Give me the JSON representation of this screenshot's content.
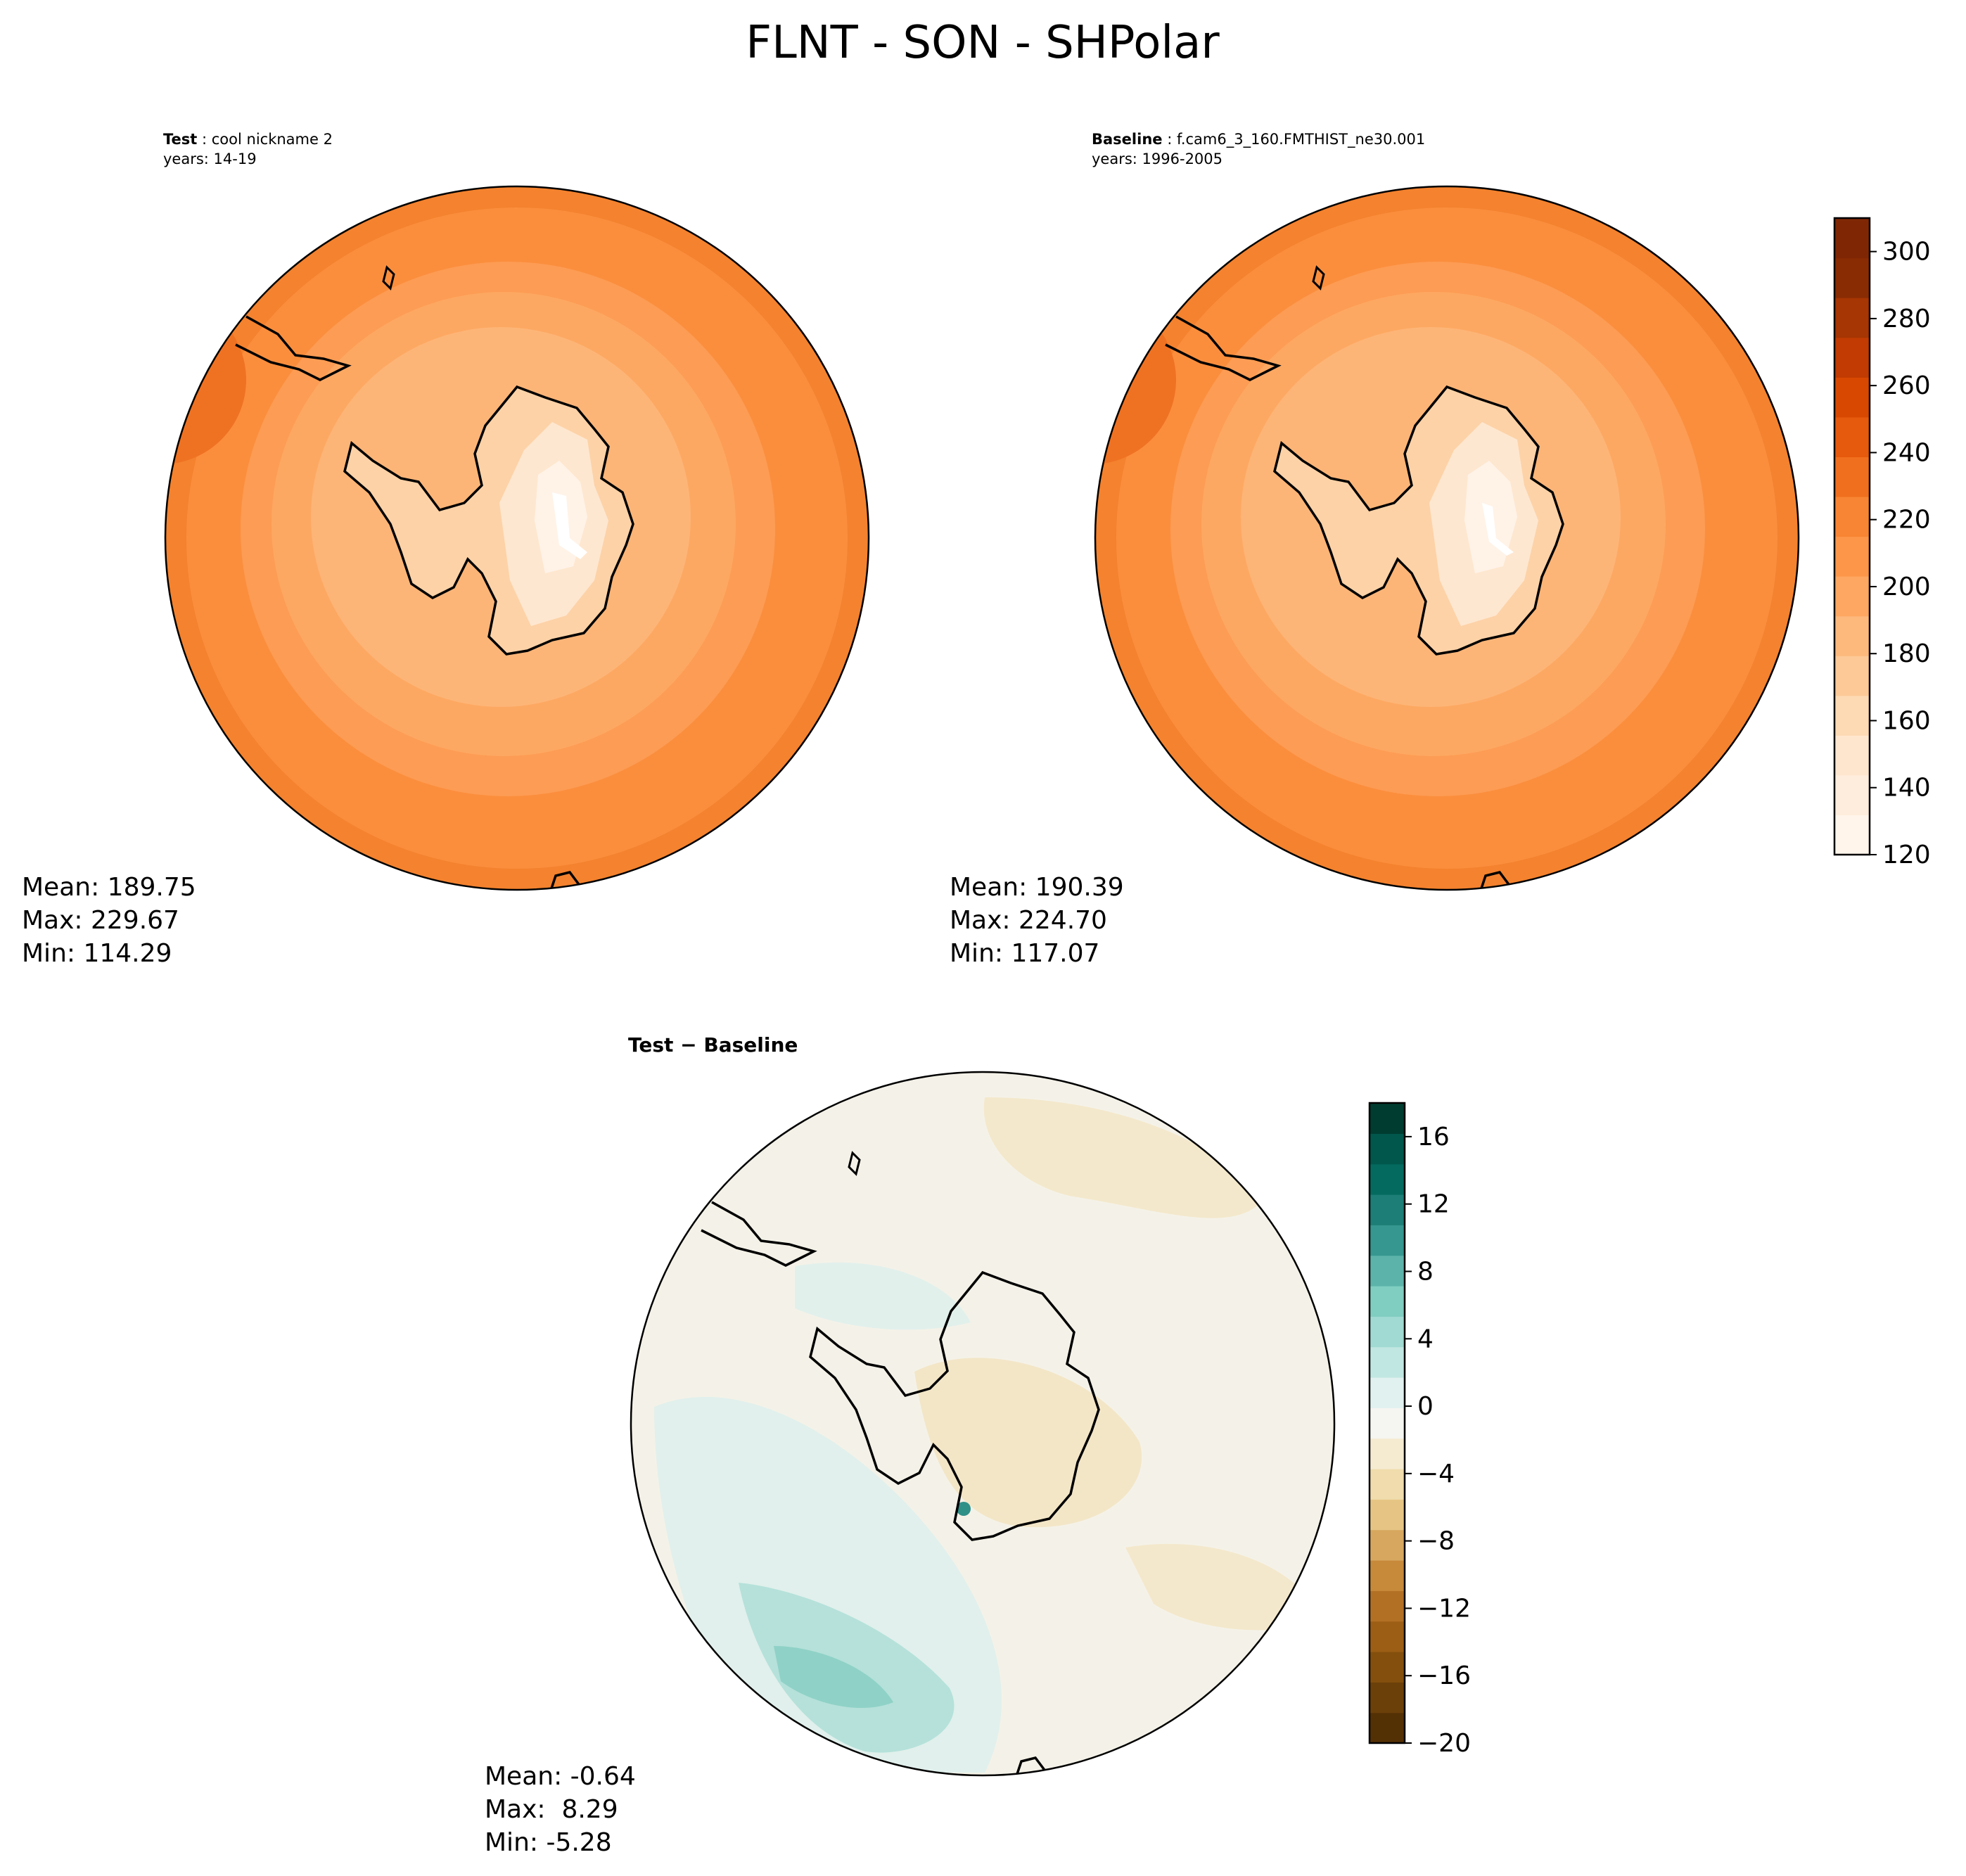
{
  "figure": {
    "title": "FLNT - SON - SHPolar"
  },
  "colors": {
    "land_outline": "#000000",
    "flnt_scale": [
      "#fff5eb",
      "#feeddc",
      "#fee6ce",
      "#fdd9b4",
      "#fdc997",
      "#fdb97c",
      "#fda762",
      "#fd9649",
      "#f88533",
      "#f06f1e",
      "#e65a0d",
      "#d84801",
      "#c13b02",
      "#a63603",
      "#8a2c03",
      "#7f2704"
    ],
    "diff_scale": [
      "#543005",
      "#6c4009",
      "#844f0d",
      "#9c5e14",
      "#b27025",
      "#c78a3a",
      "#d7a75f",
      "#e6c584",
      "#f0dcac",
      "#f5ebd1",
      "#f5f5f1",
      "#e0f1ef",
      "#c1e7e2",
      "#a0dad2",
      "#80cdc1",
      "#5cb3aa",
      "#35978f",
      "#1c7e76",
      "#046a5f",
      "#01574b",
      "#003c30"
    ]
  },
  "chart_data": [
    {
      "type": "heatmap",
      "projection": "south-polar-stereographic",
      "panel": "test",
      "title_label": "Test",
      "title_value": "cool nickname 2",
      "years": "years: 14-19",
      "stats": {
        "mean": "Mean: 189.75",
        "max": "Max: 229.67",
        "min": "Min: 114.29"
      },
      "field_description": "zonal rings of FLNT: ~130 over East Antarctic plateau rising to ~225 at 50S",
      "colorbar_ref": "shared"
    },
    {
      "type": "heatmap",
      "projection": "south-polar-stereographic",
      "panel": "baseline",
      "title_label": "Baseline",
      "title_value": "f.cam6_3_160.FMTHIST_ne30.001",
      "years": "years: 1996-2005",
      "stats": {
        "mean": "Mean: 190.39",
        "max": "Max: 224.70",
        "min": "Min: 117.07"
      },
      "colorbar": {
        "range": [
          120,
          310
        ],
        "levels": [
          120,
          130,
          140,
          150,
          160,
          170,
          180,
          190,
          200,
          210,
          220,
          230,
          240,
          250,
          260,
          270,
          280,
          290,
          300,
          310
        ],
        "ticks": [
          "120",
          "140",
          "160",
          "180",
          "200",
          "220",
          "240",
          "260",
          "280",
          "300"
        ],
        "tick_values": [
          120,
          140,
          160,
          180,
          200,
          220,
          240,
          260,
          280,
          300
        ]
      }
    },
    {
      "type": "heatmap",
      "projection": "south-polar-stereographic",
      "panel": "difference",
      "title": "Test − Baseline",
      "stats": {
        "mean": "Mean: -0.64",
        "max": "Max:  8.29",
        "min": "Min: -5.28"
      },
      "colorbar": {
        "range": [
          -20,
          18
        ],
        "ticks": [
          "16",
          "12",
          "8",
          "4",
          "0",
          "−4",
          "−8",
          "−12",
          "−16",
          "−20"
        ],
        "tick_values": [
          16,
          12,
          8,
          4,
          0,
          -4,
          -8,
          -12,
          -16,
          -20
        ]
      }
    }
  ]
}
